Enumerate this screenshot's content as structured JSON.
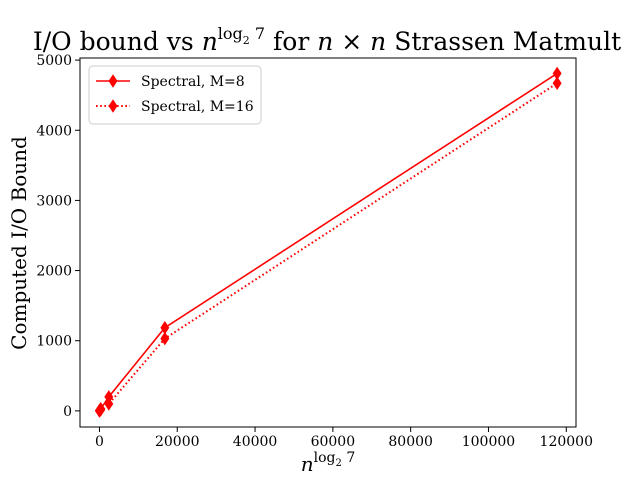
{
  "chart_data": {
    "type": "line",
    "title": {
      "prefix": "I/O bound vs ",
      "base": "n",
      "sup": "log",
      "sub": "2",
      "sup_tail": " 7",
      "suffix_a": " for ",
      "var1": "n",
      "times": " × ",
      "var2": "n",
      "suffix_b": " Strassen Matmult"
    },
    "xlabel": {
      "base": "n",
      "sup": "log",
      "sub": "2",
      "sup_tail": " 7"
    },
    "ylabel": "Computed I/O Bound",
    "xlim": [
      -5000,
      122500
    ],
    "ylim": [
      -230,
      5030
    ],
    "xticks": [
      0,
      20000,
      40000,
      60000,
      80000,
      100000,
      120000
    ],
    "yticks": [
      0,
      1000,
      2000,
      3000,
      4000,
      5000
    ],
    "grid": false,
    "legend_placement": "top-left",
    "series": [
      {
        "name": "Spectral, M=8",
        "style": "solid",
        "color": "#ff0000",
        "marker": "thin-diamond",
        "points": [
          [
            1,
            0
          ],
          [
            7,
            2
          ],
          [
            49,
            11
          ],
          [
            343,
            30
          ],
          [
            2401,
            200
          ],
          [
            16807,
            1185
          ],
          [
            117649,
            4810
          ]
        ]
      },
      {
        "name": "Spectral, M=16",
        "style": "dotted",
        "color": "#ff0000",
        "marker": "thin-diamond",
        "points": [
          [
            1,
            0
          ],
          [
            7,
            1
          ],
          [
            49,
            5
          ],
          [
            343,
            15
          ],
          [
            2401,
            100
          ],
          [
            16807,
            1030
          ],
          [
            117649,
            4670
          ]
        ]
      }
    ]
  }
}
